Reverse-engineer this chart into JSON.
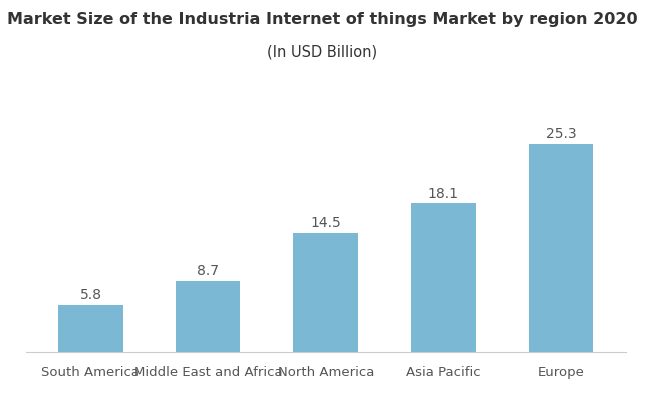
{
  "title_line1": "Market Size of the Industria Internet of things Market by region 2020",
  "title_line2": "(In USD Billion)",
  "categories": [
    "South America",
    "Middle East and Africa",
    "North America",
    "Asia Pacific",
    "Europe"
  ],
  "values": [
    5.8,
    8.7,
    14.5,
    18.1,
    25.3
  ],
  "bar_color": "#7ab8d4",
  "label_color": "#555555",
  "title_color": "#333333",
  "background_color": "#ffffff",
  "ylim": [
    0,
    29
  ],
  "bar_width": 0.55,
  "title_fontsize": 11.5,
  "subtitle_fontsize": 10.5,
  "tick_fontsize": 9.5,
  "value_fontsize": 10
}
